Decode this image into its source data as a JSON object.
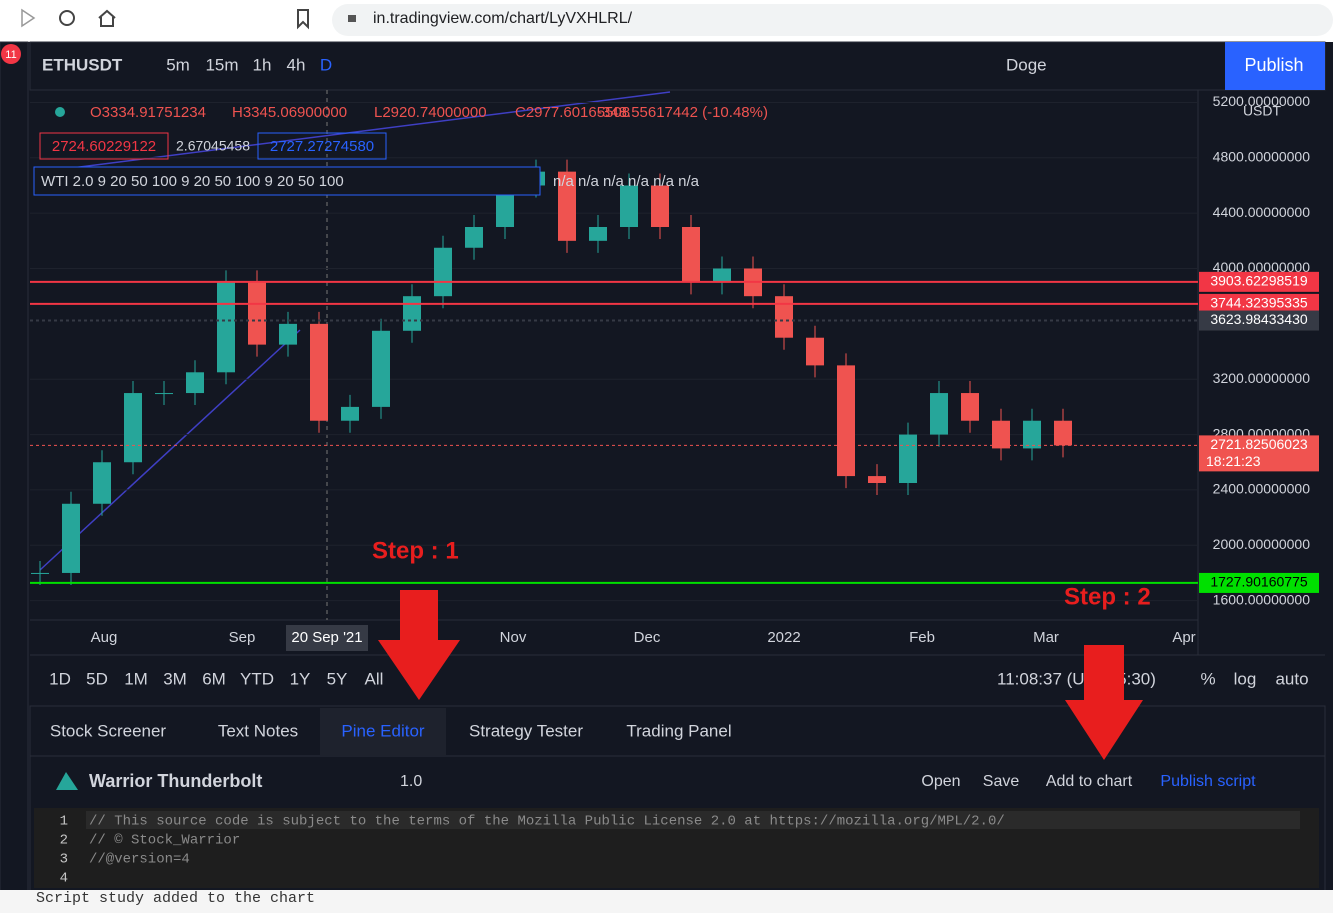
{
  "browser": {
    "url": "in.tradingview.com/chart/LyVXHLRL/",
    "badge": "11"
  },
  "toolbar": {
    "symbol": "ETHUSDT",
    "intervals": [
      "5m",
      "15m",
      "1h",
      "4h",
      "D"
    ],
    "layout": "Doge",
    "publish": "Publish"
  },
  "legend": {
    "open": "O3334.91751234",
    "high": "H3345.06900000",
    "low": "L2920.74000000",
    "close": "C2977.60165508",
    "change": "-348.55617442 (-10.48%)",
    "bid": "2724.60229122",
    "spread": "2.67045458",
    "ask": "2727.27274580",
    "indicator": "WTI 2.0 9 20 50 100 9 20 50 100 9 20 50 100",
    "indicator_values": "n/a n/a n/a n/a n/a n/a"
  },
  "chart": {
    "type": "candlestick",
    "currency": "USDT",
    "ylim": [
      1460,
      5290
    ],
    "yticks": [
      {
        "value": 5200,
        "label": "5200.00000000"
      },
      {
        "value": 4800,
        "label": "4800.00000000"
      },
      {
        "value": 4400,
        "label": "4400.00000000"
      },
      {
        "value": 4000,
        "label": "4000.00000000"
      },
      {
        "value": 3200,
        "label": "3200.00000000"
      },
      {
        "value": 2800,
        "label": "2800.00000000"
      },
      {
        "value": 2400,
        "label": "2400.00000000"
      },
      {
        "value": 2000,
        "label": "2000.00000000"
      },
      {
        "value": 1600,
        "label": "1600.00000000"
      }
    ],
    "closes": [
      1800,
      2300,
      2600,
      3100,
      3100,
      3250,
      3900,
      3450,
      3600,
      2900,
      3000,
      3550,
      3800,
      4150,
      4300,
      4600,
      4700,
      4200,
      4300,
      4600,
      4300,
      3900,
      4000,
      3800,
      3500,
      3300,
      2500,
      2450,
      2800,
      3100,
      2900,
      2700,
      2900,
      2722
    ],
    "price_lines": [
      {
        "value": 3903.62298519,
        "label": "3903.62298519",
        "color": "#f23645"
      },
      {
        "value": 3744.32395335,
        "label": "3744.32395335",
        "color": "#f23645"
      },
      {
        "value": 3623.9843343,
        "label": "3623.98433430",
        "color": "#363a45"
      },
      {
        "value": 2721.82506023,
        "label": "2721.82506023",
        "color": "#f05350"
      },
      {
        "value": 1727.90160775,
        "label": "1727.90160775",
        "color": "#00e000"
      }
    ],
    "countdown": "18:21:23",
    "time_labels": [
      "Aug",
      "Sep",
      "Nov",
      "Dec",
      "2022",
      "Feb",
      "Mar",
      "Apr"
    ],
    "crosshair_date": "20 Sep '21",
    "annotations": [
      "Step : 1",
      "Step : 2"
    ]
  },
  "range_bar": {
    "ranges": [
      "1D",
      "5D",
      "1M",
      "3M",
      "6M",
      "YTD",
      "1Y",
      "5Y",
      "All"
    ],
    "clock": "11:08:37 (UTC+5:30)",
    "options": [
      "%",
      "log",
      "auto"
    ]
  },
  "panel": {
    "tabs": [
      "Stock Screener",
      "Text Notes",
      "Pine Editor",
      "Strategy Tester",
      "Trading Panel"
    ],
    "script_name": "Warrior Thunderbolt",
    "version": "1.0",
    "actions": [
      "Open",
      "Save",
      "Add to chart",
      "Publish script"
    ],
    "code": [
      {
        "number": 1,
        "text": "// This source code is subject to the terms of the Mozilla Public License 2.0 at https://mozilla.org/MPL/2.0/"
      },
      {
        "number": 2,
        "text": "// © Stock_Warrior"
      },
      {
        "number": 3,
        "text": "//@version=4"
      },
      {
        "number": 4
      }
    ],
    "status": "Script study added to the chart"
  }
}
